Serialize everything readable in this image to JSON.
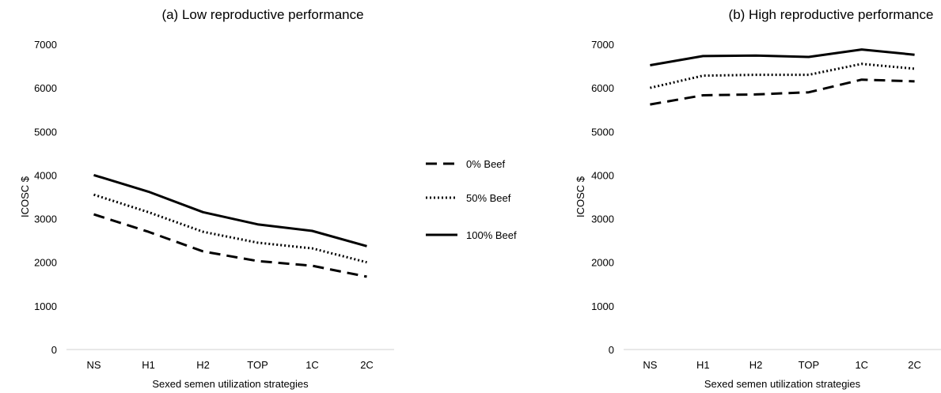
{
  "chart_data": [
    {
      "type": "line",
      "title": "(a) Low reproductive performance",
      "xlabel": "Sexed semen utilization strategies",
      "ylabel": "ICOSC $",
      "categories": [
        "NS",
        "H1",
        "H2",
        "TOP",
        "1C",
        "2C"
      ],
      "ylim": [
        0,
        7000
      ],
      "yticks": [
        0,
        1000,
        2000,
        3000,
        4000,
        5000,
        6000,
        7000
      ],
      "grid": false,
      "series": [
        {
          "name": "0% Beef",
          "style": "dashed",
          "values": [
            3100,
            2700,
            2250,
            2030,
            1920,
            1670
          ]
        },
        {
          "name": "50% Beef",
          "style": "dotted",
          "values": [
            3550,
            3150,
            2700,
            2450,
            2320,
            2000
          ]
        },
        {
          "name": "100% Beef",
          "style": "solid",
          "values": [
            4000,
            3620,
            3150,
            2870,
            2720,
            2370
          ]
        }
      ]
    },
    {
      "type": "line",
      "title": "(b) High reproductive performance",
      "xlabel": "Sexed semen utilization strategies",
      "ylabel": "ICOSC $",
      "categories": [
        "NS",
        "H1",
        "H2",
        "TOP",
        "1C",
        "2C"
      ],
      "ylim": [
        0,
        7000
      ],
      "yticks": [
        0,
        1000,
        2000,
        3000,
        4000,
        5000,
        6000,
        7000
      ],
      "grid": false,
      "series": [
        {
          "name": "0% Beef",
          "style": "dashed",
          "values": [
            5620,
            5830,
            5850,
            5900,
            6190,
            6150
          ]
        },
        {
          "name": "50% Beef",
          "style": "dotted",
          "values": [
            6000,
            6280,
            6300,
            6300,
            6550,
            6440
          ]
        },
        {
          "name": "100% Beef",
          "style": "solid",
          "values": [
            6520,
            6730,
            6740,
            6710,
            6880,
            6760
          ]
        }
      ]
    }
  ],
  "legend": {
    "placement": "between-panels",
    "entries": [
      {
        "label": "0% Beef",
        "style": "dashed"
      },
      {
        "label": "50% Beef",
        "style": "dotted"
      },
      {
        "label": "100% Beef",
        "style": "solid"
      }
    ]
  },
  "colors": {
    "line": "#000000",
    "axis": "#d0d0d0"
  }
}
